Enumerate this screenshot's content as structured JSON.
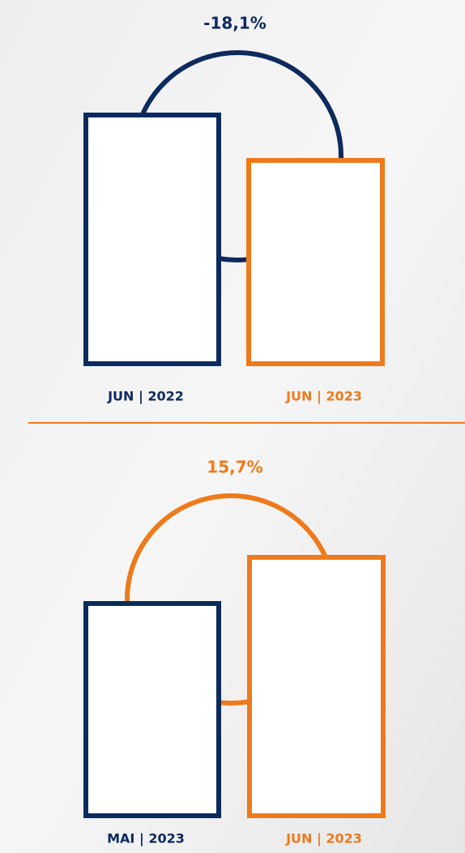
{
  "panels": [
    {
      "change": "-18,1%",
      "labels": [
        "JUN | 2022",
        "JUN | 2023"
      ]
    },
    {
      "change": "15,7%",
      "labels": [
        "MAI | 2023",
        "JUN | 2023"
      ]
    }
  ]
}
